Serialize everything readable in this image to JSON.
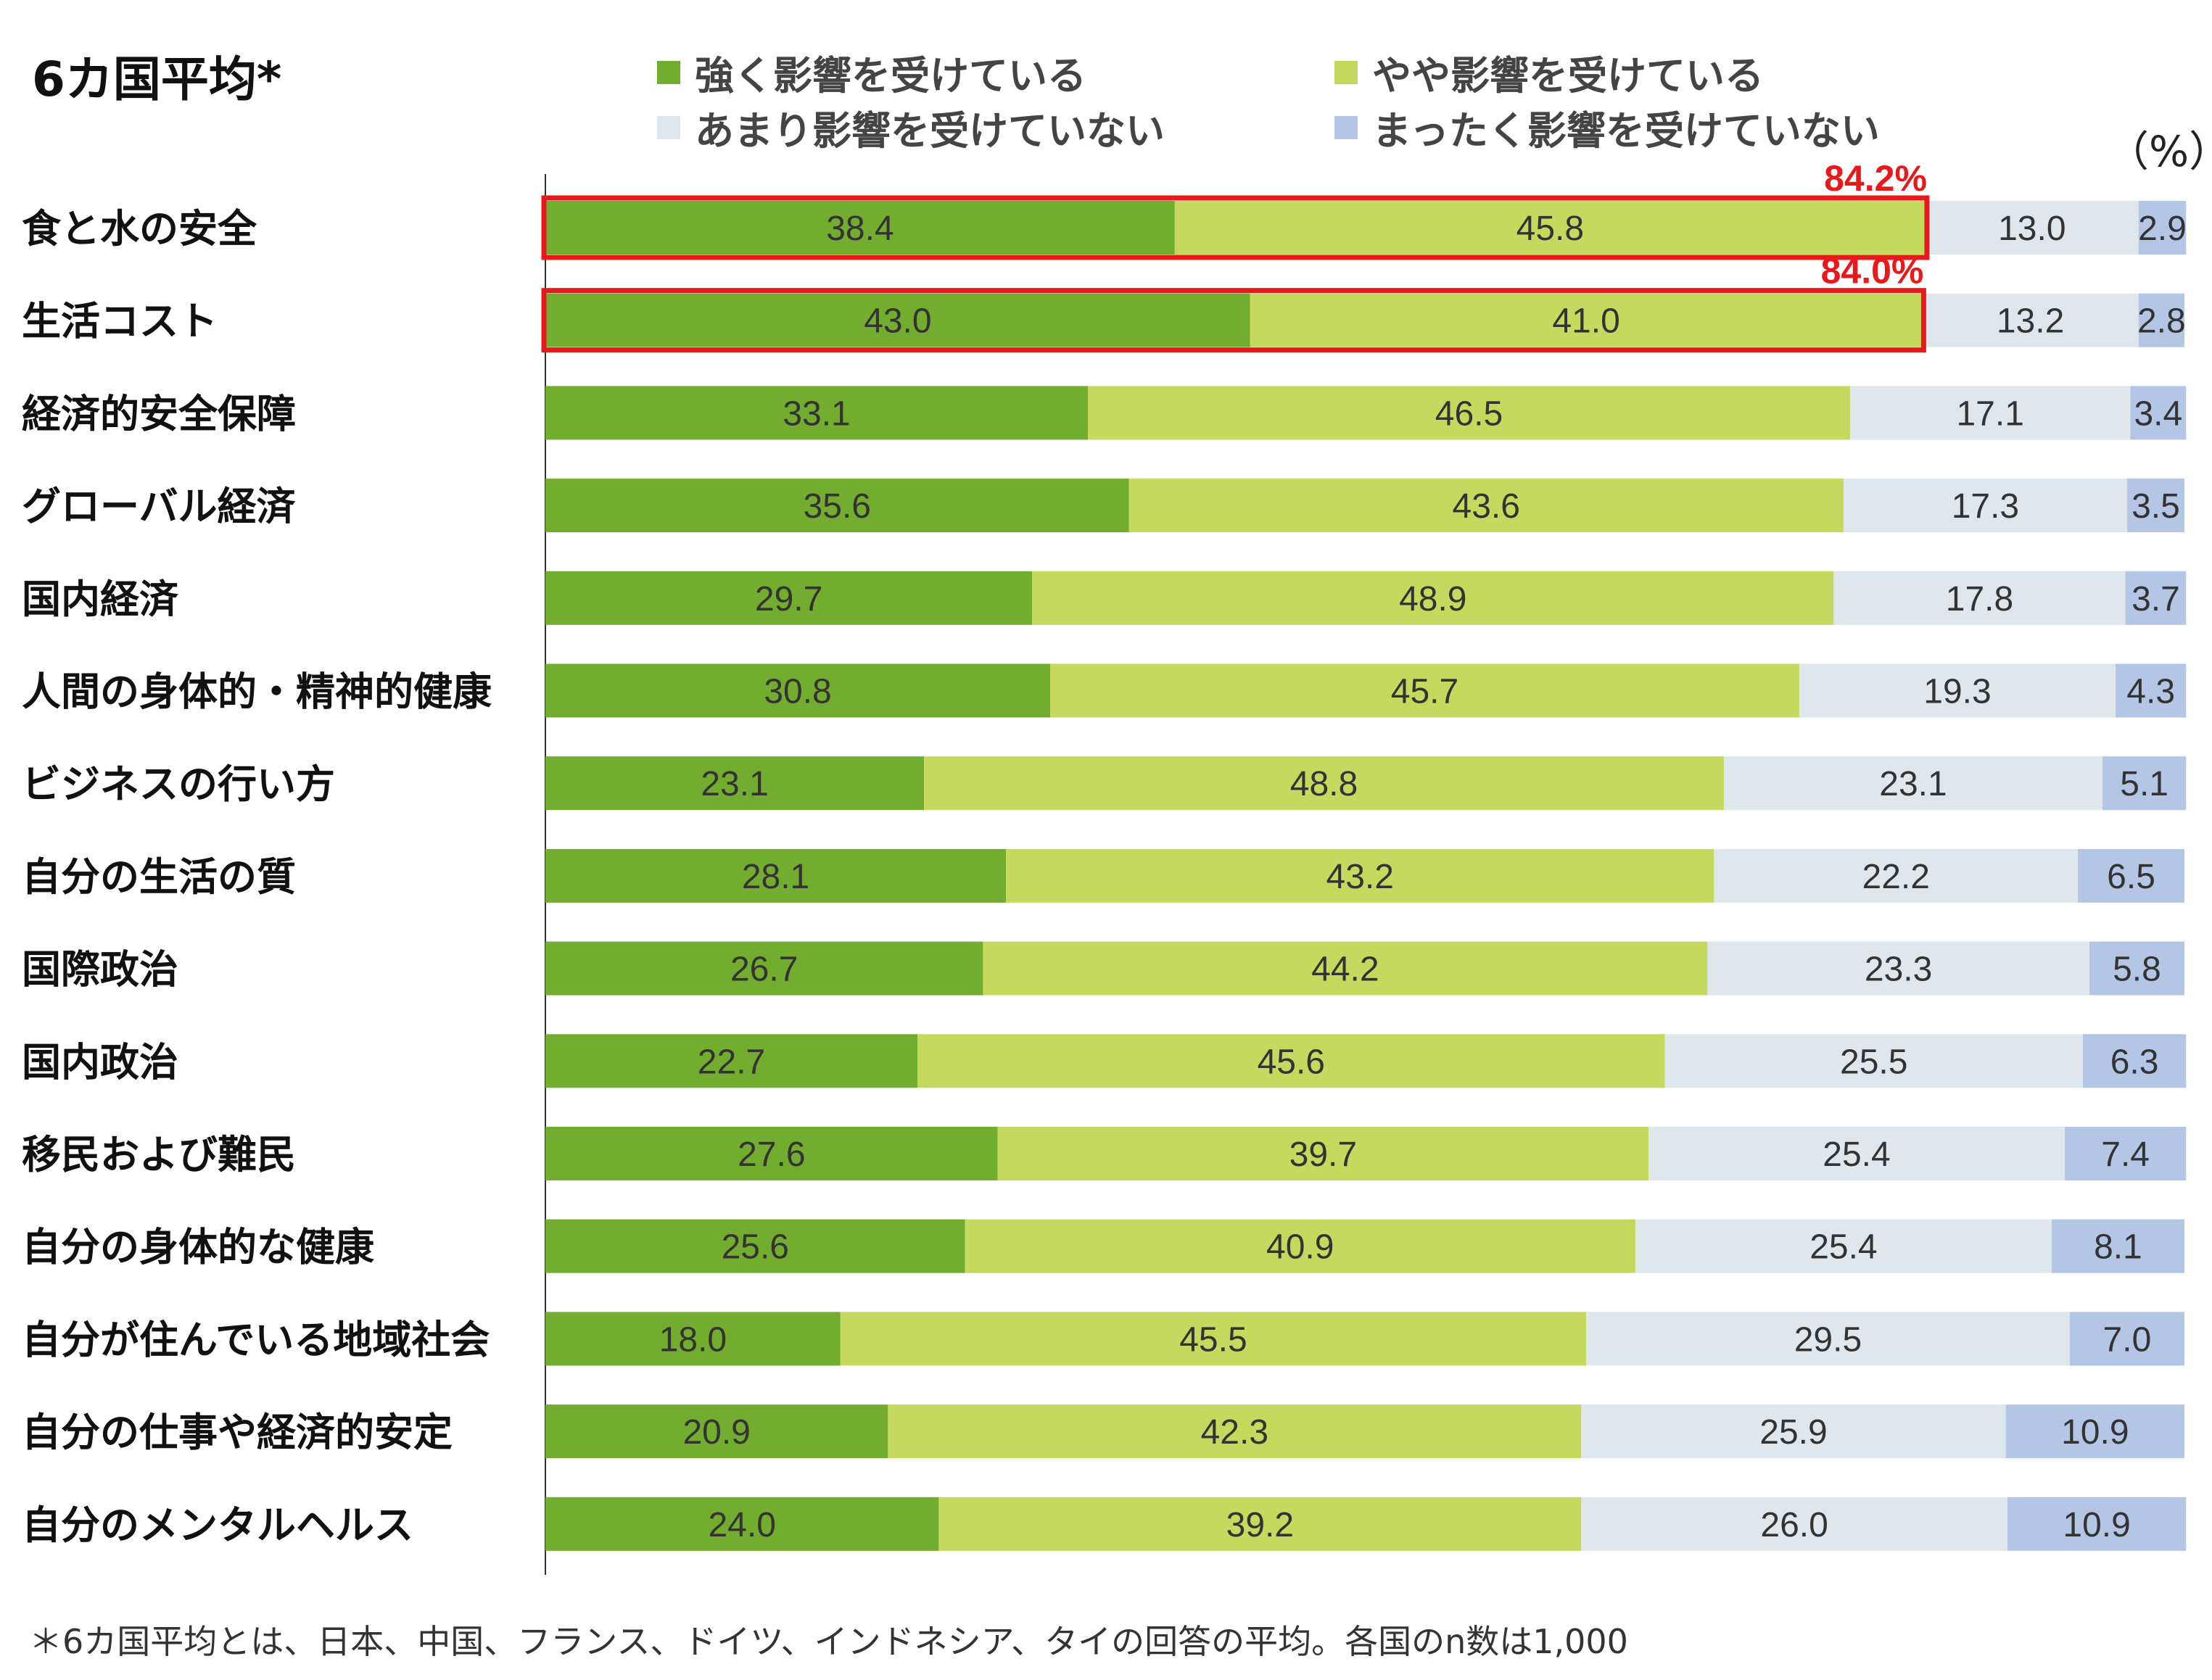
{
  "chart_data": {
    "type": "bar",
    "orientation": "horizontal",
    "stacked": true,
    "title": "6カ国平均*",
    "unit_label": "（%）",
    "xlim": [
      0,
      100
    ],
    "categories": [
      "食と水の安全",
      "生活コスト",
      "経済的安全保障",
      "グローバル経済",
      "国内経済",
      "人間の身体的・精神的健康",
      "ビジネスの行い方",
      "自分の生活の質",
      "国際政治",
      "国内政治",
      "移民および難民",
      "自分の身体的な健康",
      "自分が住んでいる地域社会",
      "自分の仕事や経済的安定",
      "自分のメンタルヘルス"
    ],
    "series": [
      {
        "name": "強く影響を受けている",
        "color": "#73ad2f",
        "values": [
          38.4,
          43.0,
          33.1,
          35.6,
          29.7,
          30.8,
          23.1,
          28.1,
          26.7,
          22.7,
          27.6,
          25.6,
          18.0,
          20.9,
          24.0
        ],
        "labels": [
          "38.4",
          "43.0",
          "33.1",
          "35.6",
          "29.7",
          "30.8",
          "23.1",
          "28.1",
          "26.7",
          "22.7",
          "27.6",
          "25.6",
          "18.0",
          "20.9",
          "24.0"
        ]
      },
      {
        "name": "やや影響を受けている",
        "color": "#c4d95e",
        "values": [
          45.8,
          41.0,
          46.5,
          43.6,
          48.9,
          45.7,
          48.8,
          43.2,
          44.2,
          45.6,
          39.7,
          40.9,
          45.5,
          42.3,
          39.2
        ],
        "labels": [
          "45.8",
          "41.0",
          "46.5",
          "43.6",
          "48.9",
          "45.7",
          "48.8",
          "43.2",
          "44.2",
          "45.6",
          "39.7",
          "40.9",
          "45.5",
          "42.3",
          "39.2"
        ]
      },
      {
        "name": "あまり影響を受けていない",
        "color": "#dfe7ec",
        "values": [
          13.0,
          13.2,
          17.1,
          17.3,
          17.8,
          19.3,
          23.1,
          22.2,
          23.3,
          25.5,
          25.4,
          25.4,
          29.5,
          25.9,
          26.0
        ],
        "labels": [
          "13.0",
          "13.2",
          "17.1",
          "17.3",
          "17.8",
          "19.3",
          "23.1",
          "22.2",
          "23.3",
          "25.5",
          "25.4",
          "25.4",
          "29.5",
          "25.9",
          "26.0"
        ]
      },
      {
        "name": "まったく影響を受けていない",
        "color": "#b4c6e6",
        "values": [
          2.9,
          2.8,
          3.4,
          3.5,
          3.7,
          4.3,
          5.1,
          6.5,
          5.8,
          6.3,
          7.4,
          8.1,
          7.0,
          10.9,
          10.9
        ],
        "labels": [
          "2.9",
          "2.8",
          "3.4",
          "3.5",
          "3.7",
          "4.3",
          "5.1",
          "6.5",
          "5.8",
          "6.3",
          "7.4",
          "8.1",
          "7.0",
          "10.9",
          "10.9"
        ]
      }
    ],
    "highlights": [
      {
        "category_index": 0,
        "label": "84.2%",
        "color": "#e8191a"
      },
      {
        "category_index": 1,
        "label": "84.0%",
        "color": "#e8191a"
      }
    ],
    "legend_placement": "top",
    "grid": false,
    "footnote": "＊6カ国平均とは、日本、中国、フランス、ドイツ、インドネシア、タイの回答の平均。各国のn数は1,000"
  }
}
